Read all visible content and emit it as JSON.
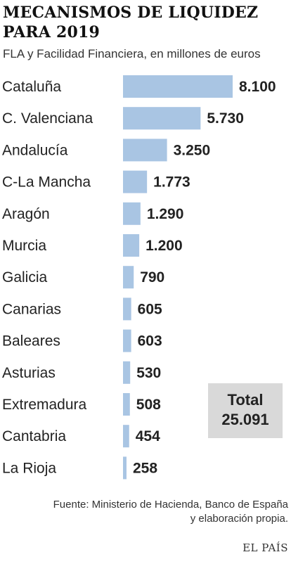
{
  "header": {
    "title": "MECANISMOS DE LIQUIDEZ PARA 2019",
    "subtitle": "FLA y Facilidad Financiera, en millones de euros"
  },
  "chart_data": {
    "type": "bar",
    "orientation": "horizontal",
    "title": "MECANISMOS DE LIQUIDEZ PARA 2019",
    "subtitle": "FLA y Facilidad Financiera, en millones de euros",
    "categories": [
      "Cataluña",
      "C. Valenciana",
      "Andalucía",
      "C-La Mancha",
      "Aragón",
      "Murcia",
      "Galicia",
      "Canarias",
      "Baleares",
      "Asturias",
      "Extremadura",
      "Cantabria",
      "La Rioja"
    ],
    "values": [
      8100,
      5730,
      3250,
      1773,
      1290,
      1200,
      790,
      605,
      603,
      530,
      508,
      454,
      258
    ],
    "value_labels": [
      "8.100",
      "5.730",
      "3.250",
      "1.773",
      "1.290",
      "1.200",
      "790",
      "605",
      "603",
      "530",
      "508",
      "454",
      "258"
    ],
    "xlim": [
      0,
      8100
    ],
    "grid": false,
    "bar_color": "#a9c5e3"
  },
  "total": {
    "label": "Total",
    "value": "25.091"
  },
  "footer": {
    "source_line1": "Fuente: Ministerio de Hacienda, Banco de España",
    "source_line2": "y elaboración propia.",
    "brand": "EL PAÍS"
  }
}
